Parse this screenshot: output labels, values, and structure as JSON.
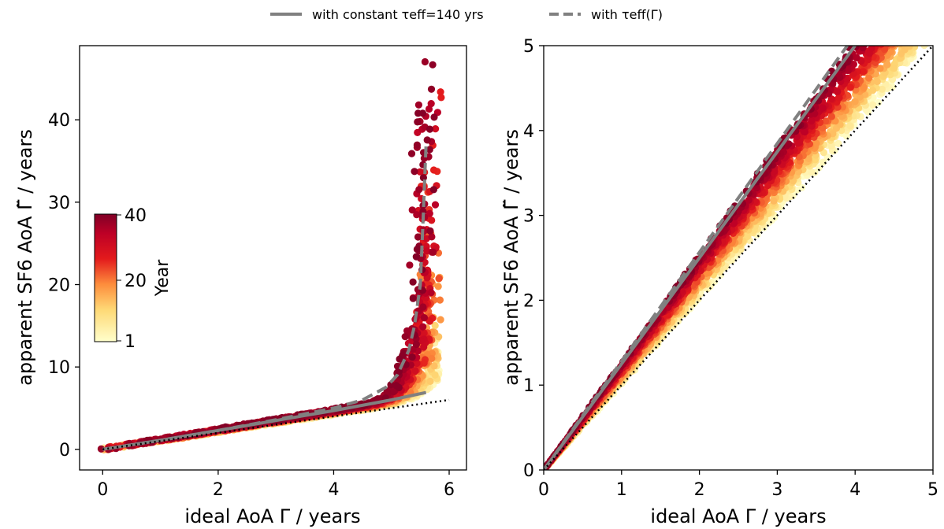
{
  "legend": {
    "items": [
      {
        "label": "with constant τeff=140 yrs",
        "style": "solid",
        "color": "#808080"
      },
      {
        "label": "with τeff(Γ)",
        "style": "dashed",
        "color": "#808080"
      }
    ],
    "placement": "top-center"
  },
  "colorbar": {
    "label": "Year",
    "ticks": [
      "40",
      "20",
      "1"
    ],
    "range": [
      1,
      40
    ],
    "colormap": [
      "#ffffcc",
      "#fed976",
      "#fd8d3c",
      "#e31a1c",
      "#bd0026",
      "#800026"
    ]
  },
  "chart_data": [
    {
      "type": "scatter",
      "name": "left",
      "xlabel": "ideal AoA Γ / years",
      "ylabel": "apparent SF6 AoA Γ̃ / years",
      "xlim": [
        -0.4,
        6.3
      ],
      "ylim": [
        -2.5,
        49
      ],
      "xticks": [
        0,
        2,
        4,
        6
      ],
      "yticks": [
        0,
        10,
        20,
        30,
        40
      ],
      "grid": false,
      "lines": [
        {
          "name": "constant",
          "style": "solid",
          "color": "#808080",
          "x": [
            0,
            1,
            2,
            3,
            4,
            5,
            5.6
          ],
          "y": [
            0,
            1.1,
            2.3,
            3.5,
            4.7,
            6.0,
            6.9
          ]
        },
        {
          "name": "variable",
          "style": "dashed",
          "color": "#808080",
          "x": [
            0,
            1,
            2,
            3,
            4,
            4.5,
            4.9,
            5.1,
            5.3,
            5.4,
            5.5,
            5.55,
            5.6
          ],
          "y": [
            0,
            1.1,
            2.3,
            3.6,
            5.0,
            6.0,
            7.5,
            9.0,
            12.0,
            15.0,
            20.0,
            28.0,
            37.0
          ]
        },
        {
          "name": "identity",
          "style": "dotted",
          "color": "#000000",
          "x": [
            0,
            6
          ],
          "y": [
            0,
            6
          ]
        }
      ]
    },
    {
      "type": "scatter",
      "name": "right",
      "xlabel": "ideal AoA Γ / years",
      "ylabel": "apparent SF6 AoA Γ̃ / years",
      "xlim": [
        0,
        5
      ],
      "ylim": [
        0,
        5
      ],
      "xticks": [
        0,
        1,
        2,
        3,
        4,
        5
      ],
      "yticks": [
        0,
        1,
        2,
        3,
        4,
        5
      ],
      "grid": false,
      "lines": [
        {
          "name": "constant",
          "style": "solid",
          "color": "#808080",
          "x": [
            0,
            4.0
          ],
          "y": [
            0,
            5.0
          ]
        },
        {
          "name": "variable",
          "style": "dashed",
          "color": "#808080",
          "x": [
            0,
            3.9
          ],
          "y": [
            0,
            5.0
          ]
        },
        {
          "name": "identity",
          "style": "dotted",
          "color": "#000000",
          "x": [
            0,
            5
          ],
          "y": [
            0,
            5
          ]
        }
      ]
    }
  ]
}
